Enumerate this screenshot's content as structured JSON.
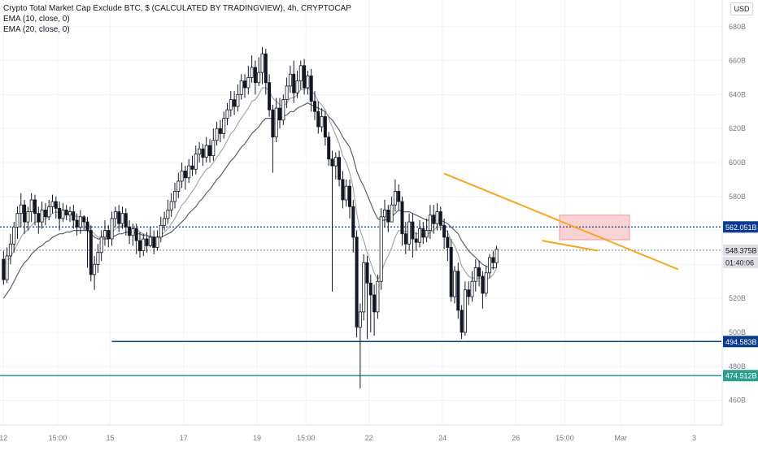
{
  "chart_data": {
    "type": "candlestick",
    "title": "Crypto Total Market Cap Exclude BTC, $ (CALCULATED BY TRADINGVIEW), 4h, CRYPTOCAP",
    "currency_button": "USD",
    "indicators": [
      "EMA (10, close, 0)",
      "EMA (20, close, 0)"
    ],
    "y_axis": {
      "unit": "B",
      "min": 450,
      "max": 690,
      "ticks": [
        460,
        480,
        500,
        520,
        540,
        560,
        580,
        600,
        620,
        640,
        660,
        680
      ],
      "tick_labels": [
        "460B",
        "480B",
        "500B",
        "520B",
        "540B",
        "560B",
        "580B",
        "600B",
        "620B",
        "640B",
        "660B",
        "680B"
      ]
    },
    "x_axis": {
      "ticks": [
        {
          "label": "12",
          "t": 0.0
        },
        {
          "label": "15:00",
          "t": 15.5
        },
        {
          "label": "15",
          "t": 30.5
        },
        {
          "label": "17",
          "t": 51.5
        },
        {
          "label": "19",
          "t": 72.5
        },
        {
          "label": "15:00",
          "t": 86.5
        },
        {
          "label": "22",
          "t": 104.5
        },
        {
          "label": "24",
          "t": 125.5
        },
        {
          "label": "26",
          "t": 146.5
        },
        {
          "label": "15:00",
          "t": 160.5
        },
        {
          "label": "Mar",
          "t": 176.5
        },
        {
          "label": "3",
          "t": 197.5
        }
      ]
    },
    "candles": [
      [
        543,
        531,
        548,
        528
      ],
      [
        531,
        545,
        550,
        529
      ],
      [
        545,
        552,
        558,
        540
      ],
      [
        552,
        562,
        565,
        547
      ],
      [
        562,
        570,
        574,
        555
      ],
      [
        570,
        575,
        582,
        562
      ],
      [
        575,
        565,
        578,
        558
      ],
      [
        565,
        571,
        574,
        560
      ],
      [
        571,
        578,
        582,
        565
      ],
      [
        578,
        570,
        581,
        563
      ],
      [
        570,
        565,
        574,
        558
      ],
      [
        565,
        572,
        577,
        561
      ],
      [
        572,
        568,
        576,
        563
      ],
      [
        568,
        574,
        578,
        566
      ],
      [
        574,
        577,
        581,
        570
      ],
      [
        577,
        573,
        580,
        567
      ],
      [
        573,
        567,
        577,
        560
      ],
      [
        567,
        572,
        576,
        565
      ],
      [
        572,
        569,
        575,
        566
      ],
      [
        569,
        571,
        574,
        565
      ],
      [
        571,
        566,
        575,
        561
      ],
      [
        566,
        562,
        570,
        557
      ],
      [
        562,
        568,
        572,
        558
      ],
      [
        568,
        565,
        569,
        560
      ],
      [
        565,
        560,
        568,
        538
      ],
      [
        560,
        534,
        563,
        530
      ],
      [
        534,
        540,
        545,
        525
      ],
      [
        540,
        547,
        552,
        535
      ],
      [
        547,
        556,
        560,
        542
      ],
      [
        556,
        560,
        566,
        551
      ],
      [
        560,
        555,
        563,
        550
      ],
      [
        555,
        567,
        571,
        551
      ],
      [
        567,
        571,
        574,
        562
      ],
      [
        571,
        564,
        575,
        559
      ],
      [
        564,
        570,
        574,
        561
      ],
      [
        570,
        562,
        573,
        557
      ],
      [
        562,
        557,
        566,
        552
      ],
      [
        557,
        561,
        564,
        551
      ],
      [
        561,
        554,
        564,
        546
      ],
      [
        554,
        548,
        559,
        544
      ],
      [
        548,
        555,
        558,
        545
      ],
      [
        555,
        551,
        559,
        547
      ],
      [
        551,
        556,
        562,
        550
      ],
      [
        556,
        550,
        560,
        546
      ],
      [
        550,
        556,
        560,
        548
      ],
      [
        556,
        563,
        568,
        553
      ],
      [
        563,
        567,
        571,
        560
      ],
      [
        567,
        572,
        578,
        564
      ],
      [
        572,
        577,
        582,
        568
      ],
      [
        577,
        583,
        588,
        573
      ],
      [
        583,
        589,
        594,
        579
      ],
      [
        589,
        595,
        600,
        585
      ],
      [
        595,
        591,
        598,
        584
      ],
      [
        591,
        598,
        602,
        588
      ],
      [
        598,
        596,
        604,
        592
      ],
      [
        596,
        605,
        610,
        593
      ],
      [
        605,
        608,
        612,
        600
      ],
      [
        608,
        603,
        611,
        598
      ],
      [
        603,
        610,
        615,
        600
      ],
      [
        610,
        604,
        614,
        600
      ],
      [
        604,
        613,
        620,
        601
      ],
      [
        613,
        620,
        624,
        610
      ],
      [
        620,
        617,
        625,
        612
      ],
      [
        617,
        626,
        630,
        614
      ],
      [
        626,
        631,
        635,
        622
      ],
      [
        631,
        637,
        642,
        627
      ],
      [
        637,
        633,
        642,
        628
      ],
      [
        633,
        640,
        646,
        630
      ],
      [
        640,
        648,
        652,
        637
      ],
      [
        648,
        644,
        652,
        638
      ],
      [
        644,
        650,
        657,
        640
      ],
      [
        650,
        656,
        663,
        647
      ],
      [
        656,
        647,
        660,
        640
      ],
      [
        647,
        653,
        662,
        645
      ],
      [
        653,
        664,
        668,
        646
      ],
      [
        664,
        647,
        667,
        640
      ],
      [
        647,
        631,
        652,
        627
      ],
      [
        631,
        615,
        634,
        594
      ],
      [
        615,
        632,
        638,
        612
      ],
      [
        632,
        625,
        638,
        620
      ],
      [
        625,
        637,
        640,
        622
      ],
      [
        637,
        645,
        650,
        632
      ],
      [
        645,
        652,
        657,
        641
      ],
      [
        652,
        641,
        660,
        635
      ],
      [
        641,
        648,
        654,
        638
      ],
      [
        648,
        657,
        660,
        643
      ],
      [
        657,
        644,
        661,
        640
      ],
      [
        644,
        651,
        654,
        640
      ],
      [
        651,
        636,
        655,
        630
      ],
      [
        636,
        630,
        642,
        625
      ],
      [
        630,
        621,
        636,
        617
      ],
      [
        621,
        627,
        632,
        618
      ],
      [
        627,
        615,
        630,
        610
      ],
      [
        615,
        602,
        618,
        598
      ],
      [
        602,
        598,
        607,
        524
      ],
      [
        598,
        603,
        606,
        590
      ],
      [
        603,
        590,
        607,
        586
      ],
      [
        590,
        578,
        595,
        573
      ],
      [
        578,
        586,
        590,
        574
      ],
      [
        586,
        574,
        590,
        567
      ],
      [
        574,
        556,
        578,
        547
      ],
      [
        556,
        503,
        560,
        497
      ],
      [
        503,
        512,
        517,
        467
      ],
      [
        512,
        541,
        546,
        507
      ],
      [
        541,
        529,
        545,
        496
      ],
      [
        529,
        522,
        534,
        500
      ],
      [
        522,
        512,
        528,
        498
      ],
      [
        512,
        530,
        534,
        508
      ],
      [
        530,
        568,
        573,
        525
      ],
      [
        568,
        572,
        578,
        562
      ],
      [
        572,
        565,
        575,
        559
      ],
      [
        565,
        575,
        580,
        566
      ],
      [
        575,
        583,
        590,
        571
      ],
      [
        583,
        577,
        587,
        572
      ],
      [
        577,
        558,
        580,
        551
      ],
      [
        558,
        552,
        565,
        546
      ],
      [
        552,
        565,
        570,
        548
      ],
      [
        565,
        555,
        570,
        544
      ],
      [
        555,
        553,
        559,
        548
      ],
      [
        553,
        561,
        566,
        550
      ],
      [
        561,
        556,
        565,
        552
      ],
      [
        556,
        560,
        567,
        553
      ],
      [
        560,
        569,
        575,
        555
      ],
      [
        569,
        564,
        575,
        558
      ],
      [
        564,
        571,
        576,
        560
      ],
      [
        571,
        563,
        574,
        560
      ],
      [
        563,
        556,
        567,
        549
      ],
      [
        556,
        550,
        560,
        542
      ],
      [
        550,
        521,
        555,
        518
      ],
      [
        521,
        536,
        539,
        517
      ],
      [
        536,
        513,
        541,
        508
      ],
      [
        513,
        500,
        516,
        496
      ],
      [
        500,
        525,
        530,
        498
      ],
      [
        525,
        521,
        530,
        516
      ],
      [
        521,
        530,
        536,
        518
      ],
      [
        530,
        538,
        543,
        524
      ],
      [
        538,
        533,
        542,
        527
      ],
      [
        533,
        523,
        536,
        514
      ],
      [
        523,
        535,
        539,
        521
      ],
      [
        535,
        544,
        546,
        532
      ],
      [
        544,
        541,
        548,
        537
      ],
      [
        541,
        549,
        551,
        538
      ]
    ],
    "ema10": [
      540,
      542,
      544,
      548,
      552,
      556,
      559,
      560,
      563,
      565,
      565,
      566,
      567,
      568,
      570,
      571,
      570,
      570,
      570,
      570,
      569,
      568,
      568,
      567,
      566,
      560,
      558,
      556,
      556,
      557,
      557,
      559,
      561,
      562,
      563,
      563,
      562,
      562,
      561,
      559,
      558,
      557,
      557,
      556,
      556,
      557,
      559,
      561,
      564,
      567,
      571,
      575,
      577,
      580,
      583,
      586,
      590,
      593,
      596,
      597,
      600,
      603,
      606,
      609,
      613,
      617,
      619,
      623,
      626,
      629,
      632,
      636,
      637,
      640,
      644,
      644,
      642,
      638,
      636,
      634,
      633,
      635,
      638,
      638,
      640,
      643,
      643,
      644,
      642,
      640,
      636,
      634,
      631,
      626,
      621,
      616,
      611,
      604,
      600,
      594,
      585,
      570,
      560,
      554,
      547,
      541,
      535,
      531,
      535,
      541,
      545,
      550,
      556,
      560,
      560,
      559,
      560,
      559,
      558,
      558,
      557,
      557,
      559,
      560,
      562,
      562,
      561,
      559,
      554,
      551,
      546,
      539,
      536,
      533,
      532,
      532,
      532,
      532,
      531,
      532,
      534,
      538
    ],
    "ema20": [
      520,
      523,
      526,
      530,
      534,
      538,
      541,
      543,
      546,
      548,
      550,
      551,
      553,
      554,
      556,
      557,
      558,
      558,
      559,
      559,
      560,
      560,
      560,
      560,
      560,
      558,
      556,
      555,
      555,
      555,
      555,
      556,
      557,
      558,
      558,
      559,
      559,
      559,
      558,
      558,
      557,
      557,
      556,
      556,
      556,
      556,
      557,
      558,
      559,
      561,
      563,
      565,
      567,
      570,
      572,
      574,
      577,
      579,
      582,
      584,
      587,
      590,
      592,
      595,
      598,
      601,
      603,
      606,
      609,
      611,
      614,
      617,
      619,
      621,
      624,
      626,
      626,
      626,
      626,
      626,
      627,
      628,
      630,
      630,
      632,
      633,
      634,
      635,
      634,
      633,
      632,
      631,
      630,
      627,
      625,
      622,
      619,
      615,
      612,
      609,
      603,
      595,
      590,
      586,
      581,
      576,
      571,
      567,
      566,
      566,
      567,
      568,
      570,
      572,
      571,
      571,
      571,
      570,
      569,
      568,
      567,
      566,
      566,
      566,
      566,
      566,
      565,
      564,
      562,
      560,
      558,
      554,
      551,
      548,
      546,
      544,
      542,
      540,
      539,
      538,
      538,
      538
    ],
    "lines": [
      {
        "name": "price_line_current",
        "value": 548.375,
        "label": "548.375B",
        "color": "#9e9ea4",
        "style": "dotted"
      },
      {
        "name": "hline_562",
        "value": 562.051,
        "label": "562.051B",
        "color": "#0d3a8c",
        "style": "dotted"
      },
      {
        "name": "hline_494",
        "value": 494.583,
        "label": "494.583B",
        "color": "#0d3a8c",
        "style": "solid",
        "from_t": 31.0
      },
      {
        "name": "hline_474",
        "value": 474.512,
        "label": "474.512B",
        "color": "#2e9e8c",
        "style": "solid"
      }
    ],
    "countdown_label": "01:40:06",
    "trendlines": [
      {
        "name": "orange-trendline-long",
        "t1": 126.0,
        "v1": 593.5,
        "t2": 193.0,
        "v2": 537.0,
        "color": "#f5a623"
      },
      {
        "name": "orange-trendline-short",
        "t1": 154.0,
        "v1": 554.0,
        "t2": 170.0,
        "v2": 548.0,
        "color": "#f5a623"
      }
    ],
    "zone": {
      "t1": 159.0,
      "t2": 179.0,
      "v1": 554.5,
      "v2": 569.0,
      "fill": "#f7c7c8",
      "stroke": "#f19b9d"
    },
    "colors": {
      "up": "#ffffff",
      "down": "#131722",
      "wick": "#131722",
      "ema10": "#a7a7aa",
      "ema20": "#5d606b",
      "grid": "#f0f3fa",
      "axis_text": "#787b86"
    }
  }
}
